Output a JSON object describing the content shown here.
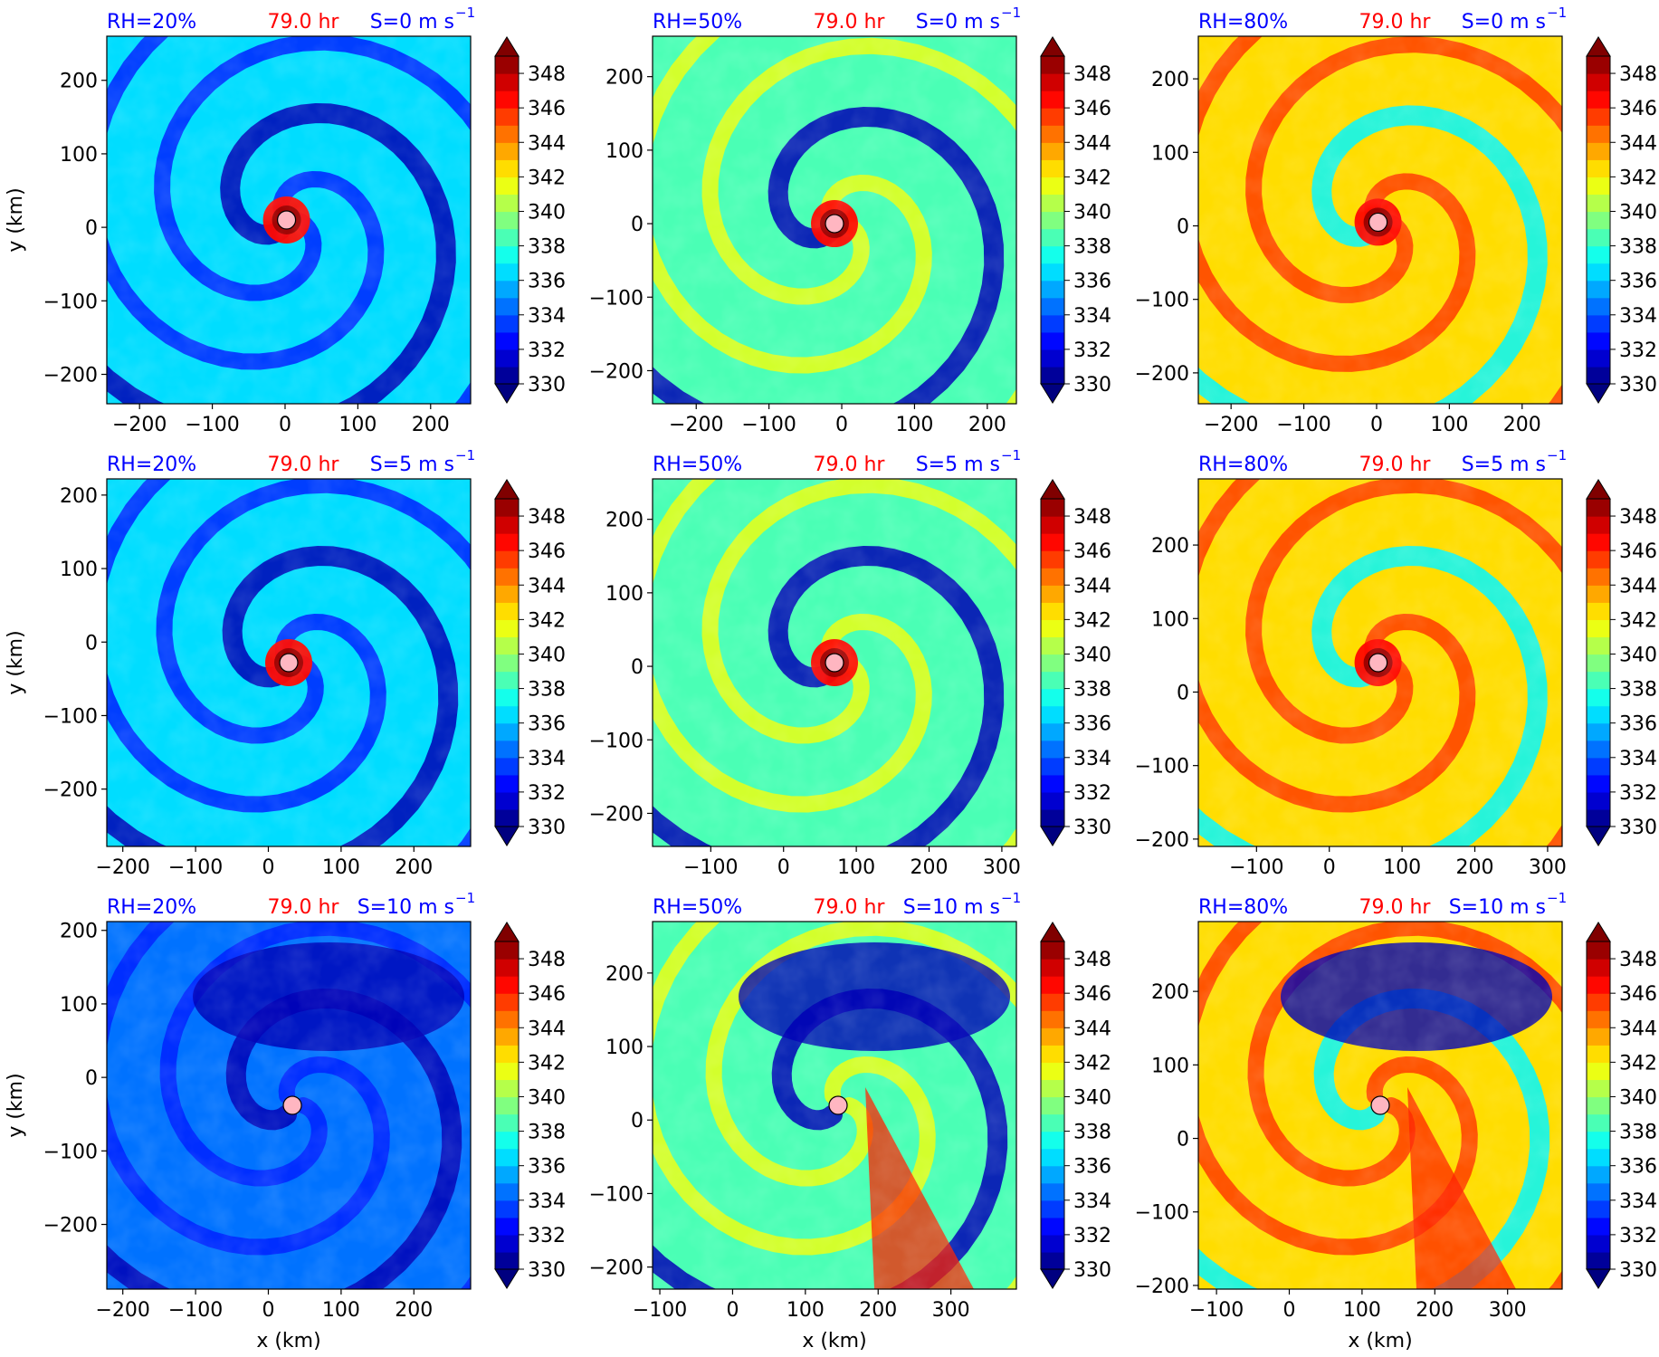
{
  "figure": {
    "xlabel": "x (km)",
    "ylabel": "y (km)",
    "time_label": "79.0 hr",
    "colors": {
      "rh_label": "#0000ff",
      "time_label": "#ff0000",
      "shear_label": "#0000ff",
      "center_marker": "#ffb6c1"
    }
  },
  "colorbar": {
    "levels": [
      330,
      331,
      332,
      333,
      334,
      335,
      336,
      337,
      338,
      339,
      340,
      341,
      342,
      343,
      344,
      345,
      346,
      347,
      348,
      349
    ],
    "tick_labels": [
      "330",
      "332",
      "334",
      "336",
      "338",
      "340",
      "342",
      "344",
      "346",
      "348"
    ],
    "colormap": "jet",
    "extend": "both"
  },
  "chart_data": [
    {
      "type": "heatmap",
      "rh_label": "RH=20%",
      "time_label": "79.0 hr",
      "shear_label": "S=0 m s",
      "shear_exp": "−1",
      "xlim": [
        -245,
        255
      ],
      "ylim": [
        -240,
        260
      ],
      "xticks": [
        -200,
        -100,
        0,
        100,
        200
      ],
      "yticks": [
        -200,
        -100,
        0,
        100,
        200
      ],
      "xtick_labels": [
        "−200",
        "−100",
        "0",
        "100",
        "200"
      ],
      "ytick_labels": [
        "−200",
        "−100",
        "0",
        "100",
        "200"
      ],
      "center": [
        2,
        10
      ],
      "show_ylabel": true,
      "show_xlabel": false
    },
    {
      "type": "heatmap",
      "rh_label": "RH=50%",
      "time_label": "79.0 hr",
      "shear_label": "S=0 m s",
      "shear_exp": "−1",
      "xlim": [
        -260,
        240
      ],
      "ylim": [
        -245,
        255
      ],
      "xticks": [
        -200,
        -100,
        0,
        100,
        200
      ],
      "yticks": [
        -200,
        -100,
        0,
        100,
        200
      ],
      "xtick_labels": [
        "−200",
        "−100",
        "0",
        "100",
        "200"
      ],
      "ytick_labels": [
        "−200",
        "−100",
        "0",
        "100",
        "200"
      ],
      "center": [
        -10,
        0
      ],
      "show_ylabel": false,
      "show_xlabel": false
    },
    {
      "type": "heatmap",
      "rh_label": "RH=80%",
      "time_label": "79.0 hr",
      "shear_label": "S=0 m s",
      "shear_exp": "−1",
      "xlim": [
        -245,
        255
      ],
      "ylim": [
        -242,
        258
      ],
      "xticks": [
        -200,
        -100,
        0,
        100,
        200
      ],
      "yticks": [
        -200,
        -100,
        0,
        100,
        200
      ],
      "xtick_labels": [
        "−200",
        "−100",
        "0",
        "100",
        "200"
      ],
      "ytick_labels": [
        "−200",
        "−100",
        "0",
        "100",
        "200"
      ],
      "center": [
        2,
        5
      ],
      "show_ylabel": false,
      "show_xlabel": false
    },
    {
      "type": "heatmap",
      "rh_label": "RH=20%",
      "time_label": "79.0 hr",
      "shear_label": "S=5 m s",
      "shear_exp": "−1",
      "xlim": [
        -222,
        278
      ],
      "ylim": [
        -278,
        222
      ],
      "xticks": [
        -200,
        -100,
        0,
        100,
        200
      ],
      "yticks": [
        -200,
        -100,
        0,
        100,
        200
      ],
      "xtick_labels": [
        "−200",
        "−100",
        "0",
        "100",
        "200"
      ],
      "ytick_labels": [
        "−200",
        "−100",
        "0",
        "100",
        "200"
      ],
      "center": [
        28,
        -28
      ],
      "show_ylabel": true,
      "show_xlabel": false
    },
    {
      "type": "heatmap",
      "rh_label": "RH=50%",
      "time_label": "79.0 hr",
      "shear_label": "S=5 m s",
      "shear_exp": "−1",
      "xlim": [
        -180,
        320
      ],
      "ylim": [
        -245,
        255
      ],
      "xticks": [
        -100,
        0,
        100,
        200,
        300
      ],
      "yticks": [
        -200,
        -100,
        0,
        100,
        200
      ],
      "xtick_labels": [
        "−100",
        "0",
        "100",
        "200",
        "300"
      ],
      "ytick_labels": [
        "−200",
        "−100",
        "0",
        "100",
        "200"
      ],
      "center": [
        70,
        5
      ],
      "show_ylabel": false,
      "show_xlabel": false
    },
    {
      "type": "heatmap",
      "rh_label": "RH=80%",
      "time_label": "79.0 hr",
      "shear_label": "S=5 m s",
      "shear_exp": "−1",
      "xlim": [
        -180,
        320
      ],
      "ylim": [
        -210,
        290
      ],
      "xticks": [
        -100,
        0,
        100,
        200,
        300
      ],
      "yticks": [
        -200,
        -100,
        0,
        100,
        200
      ],
      "xtick_labels": [
        "−100",
        "0",
        "100",
        "200",
        "300"
      ],
      "ytick_labels": [
        "−200",
        "−100",
        "0",
        "100",
        "200"
      ],
      "center": [
        67,
        40
      ],
      "show_ylabel": false,
      "show_xlabel": false
    },
    {
      "type": "heatmap",
      "rh_label": "RH=20%",
      "time_label": "79.0 hr",
      "shear_label": "S=10 m s",
      "shear_exp": "−1",
      "xlim": [
        -222,
        278
      ],
      "ylim": [
        -288,
        212
      ],
      "xticks": [
        -200,
        -100,
        0,
        100,
        200
      ],
      "yticks": [
        -200,
        -100,
        0,
        100,
        200
      ],
      "xtick_labels": [
        "−200",
        "−100",
        "0",
        "100",
        "200"
      ],
      "ytick_labels": [
        "−200",
        "−100",
        "0",
        "100",
        "200"
      ],
      "center": [
        33,
        -38
      ],
      "show_ylabel": true,
      "show_xlabel": true
    },
    {
      "type": "heatmap",
      "rh_label": "RH=50%",
      "time_label": "79.0 hr",
      "shear_label": "S=10 m s",
      "shear_exp": "−1",
      "xlim": [
        -110,
        390
      ],
      "ylim": [
        -230,
        270
      ],
      "xticks": [
        -100,
        0,
        100,
        200,
        300
      ],
      "yticks": [
        -200,
        -100,
        0,
        100,
        200
      ],
      "xtick_labels": [
        "−100",
        "0",
        "100",
        "200",
        "300"
      ],
      "ytick_labels": [
        "−200",
        "−100",
        "0",
        "100",
        "200"
      ],
      "center": [
        145,
        20
      ],
      "show_ylabel": false,
      "show_xlabel": true
    },
    {
      "type": "heatmap",
      "rh_label": "RH=80%",
      "time_label": "79.0 hr",
      "shear_label": "S=10 m s",
      "shear_exp": "−1",
      "xlim": [
        -125,
        375
      ],
      "ylim": [
        -205,
        295
      ],
      "xticks": [
        -100,
        0,
        100,
        200,
        300
      ],
      "yticks": [
        -200,
        -100,
        0,
        100,
        200
      ],
      "xtick_labels": [
        "−100",
        "0",
        "100",
        "200",
        "300"
      ],
      "ytick_labels": [
        "−200",
        "−100",
        "0",
        "100",
        "200"
      ],
      "center": [
        125,
        45
      ],
      "show_ylabel": false,
      "show_xlabel": true
    }
  ]
}
